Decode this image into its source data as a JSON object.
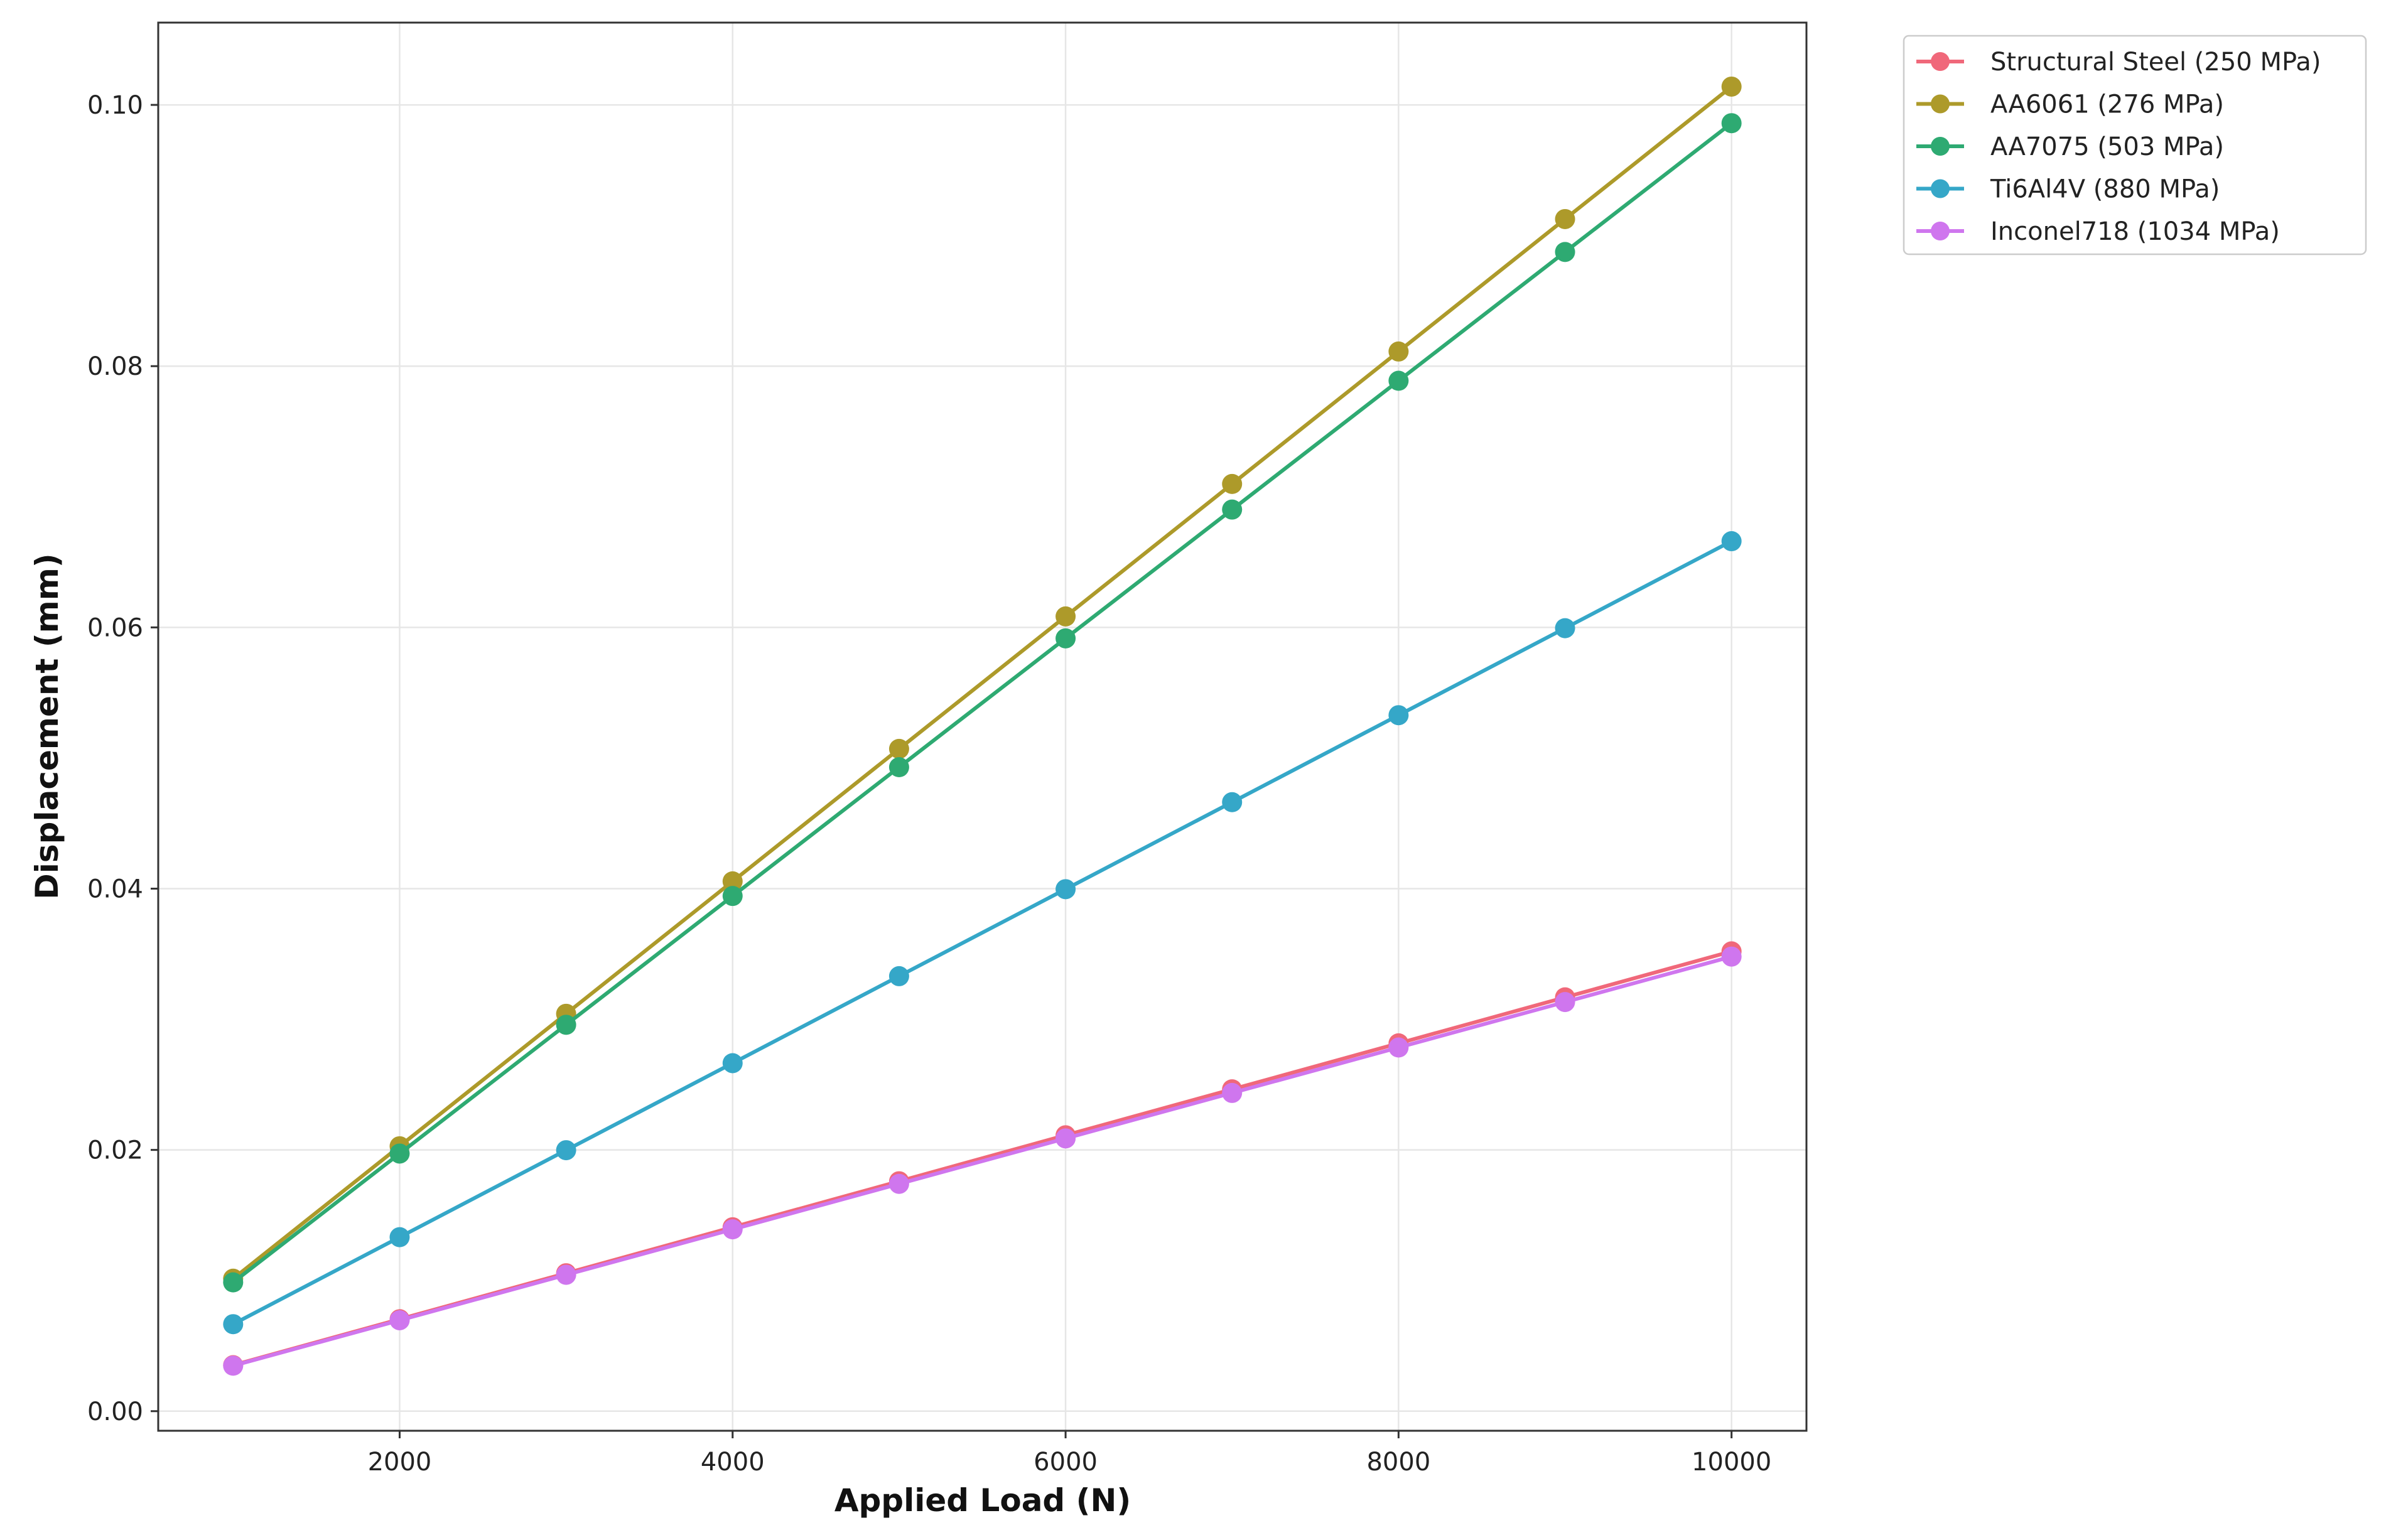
{
  "chart_data": {
    "type": "line",
    "title": "",
    "xlabel": "Applied Load (N)",
    "ylabel": "Displacement (mm)",
    "x": [
      1000,
      2000,
      3000,
      4000,
      5000,
      6000,
      7000,
      8000,
      9000,
      10000
    ],
    "xlim": [
      550,
      10450
    ],
    "ylim": [
      -0.0015,
      0.1063
    ],
    "xticks": [
      2000,
      4000,
      6000,
      8000,
      10000
    ],
    "xtick_labels": [
      "2000",
      "4000",
      "6000",
      "8000",
      "10000"
    ],
    "yticks": [
      0.0,
      0.02,
      0.04,
      0.06,
      0.08,
      0.1
    ],
    "ytick_labels": [
      "0.00",
      "0.02",
      "0.04",
      "0.06",
      "0.08",
      "0.10"
    ],
    "grid": true,
    "legend_position": "outside top-right",
    "series": [
      {
        "name": "Structural Steel (250 MPa)",
        "color": "#f0687a",
        "values": [
          0.00352,
          0.00704,
          0.01056,
          0.01408,
          0.0176,
          0.02112,
          0.02464,
          0.02816,
          0.03168,
          0.0352
        ]
      },
      {
        "name": "AA6061 (276 MPa)",
        "color": "#ad9a2a",
        "values": [
          0.01014,
          0.02028,
          0.03042,
          0.04056,
          0.0507,
          0.06084,
          0.07098,
          0.08112,
          0.09126,
          0.1014
        ]
      },
      {
        "name": "AA7075 (503 MPa)",
        "color": "#2eaa72",
        "values": [
          0.00986,
          0.01972,
          0.02958,
          0.03944,
          0.0493,
          0.05916,
          0.06902,
          0.07888,
          0.08874,
          0.0986
        ]
      },
      {
        "name": "Ti6Al4V (880 MPa)",
        "color": "#35a7c8",
        "values": [
          0.00666,
          0.01332,
          0.01998,
          0.02664,
          0.0333,
          0.03996,
          0.04662,
          0.05328,
          0.05994,
          0.0666
        ]
      },
      {
        "name": "Inconel718 (1034 MPa)",
        "color": "#cf76ee",
        "values": [
          0.00348,
          0.00696,
          0.01044,
          0.01392,
          0.0174,
          0.02088,
          0.02436,
          0.02784,
          0.03132,
          0.0348
        ]
      }
    ]
  }
}
